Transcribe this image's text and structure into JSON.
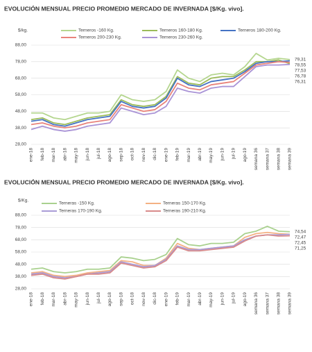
{
  "chart_data": [
    {
      "type": "line",
      "title": "EVOLUCIÓN MENSUAL PRECIO PROMEDIO MERCADO DE INVERNADA [$/Kg. vivo].",
      "y_label": "$/kg.",
      "categories": [
        "ene-18",
        "feb-18",
        "mar-18",
        "abr-18",
        "may-18",
        "jun-18",
        "jul-18",
        "ago-18",
        "sep-18",
        "oct-18",
        "nov-18",
        "dic-18",
        "ene-19",
        "feb-19",
        "mar-19",
        "abr-19",
        "may-19",
        "jun-19",
        "jul-19",
        "ago-19",
        "semana 36",
        "semana 37",
        "semana 38",
        "semana 39"
      ],
      "ylim": [
        28,
        88
      ],
      "yticks": [
        {
          "value": 28,
          "label": "28,00"
        },
        {
          "value": 38,
          "label": "38,00"
        },
        {
          "value": 48,
          "label": "48,00"
        },
        {
          "value": 58,
          "label": "58,00"
        },
        {
          "value": 68,
          "label": "68,00"
        },
        {
          "value": 78,
          "label": "78,00"
        },
        {
          "value": 88,
          "label": "88,00"
        }
      ],
      "grid": true,
      "series": [
        {
          "name": "Terneros -160 Kg.",
          "color": "#b5d68f",
          "values": [
            47,
            47,
            44,
            43,
            45,
            47,
            47,
            48,
            58,
            55,
            54,
            55,
            60,
            73,
            68,
            66,
            70,
            71,
            70,
            75,
            83,
            79,
            80,
            79.31
          ],
          "value_labels": [
            null,
            null,
            null,
            null,
            null,
            null,
            null,
            null,
            null,
            null,
            null,
            null,
            null,
            null,
            null,
            null,
            null,
            null,
            null,
            null,
            null,
            null,
            null,
            "79,31"
          ]
        },
        {
          "name": "Terneros 160-180 Kg.",
          "color": "#9bbb59",
          "values": [
            43,
            44,
            41,
            40,
            42,
            44,
            45,
            46,
            55,
            52,
            51,
            52,
            57,
            69,
            65,
            64,
            68,
            69,
            69,
            73,
            78,
            78,
            79,
            76.78
          ],
          "value_labels": [
            null,
            null,
            null,
            null,
            null,
            null,
            null,
            null,
            null,
            null,
            null,
            null,
            null,
            null,
            null,
            null,
            null,
            null,
            null,
            null,
            null,
            null,
            null,
            "76,78"
          ]
        },
        {
          "name": "Terneros 180-200 Kg.",
          "color": "#4472c4",
          "values": [
            42,
            43,
            40,
            39,
            41,
            43,
            44,
            45,
            54,
            51,
            50,
            51,
            56,
            68,
            64,
            63,
            66,
            67,
            68,
            72,
            77,
            78,
            78,
            78.55
          ],
          "value_labels": [
            null,
            null,
            null,
            null,
            null,
            null,
            null,
            null,
            null,
            null,
            null,
            null,
            null,
            null,
            null,
            null,
            null,
            null,
            null,
            null,
            null,
            null,
            null,
            "78,55"
          ]
        },
        {
          "name": "Terneros 200-230 Kg.",
          "color": "#e8837a",
          "values": [
            40,
            41,
            39,
            38,
            39,
            41,
            42,
            43,
            52,
            50,
            48,
            49,
            54,
            65,
            62,
            61,
            64,
            65,
            66,
            71,
            76,
            77,
            78,
            77.53
          ],
          "value_labels": [
            null,
            null,
            null,
            null,
            null,
            null,
            null,
            null,
            null,
            null,
            null,
            null,
            null,
            null,
            null,
            null,
            null,
            null,
            null,
            null,
            null,
            null,
            null,
            "77,53"
          ]
        },
        {
          "name": "Terneros 230-260 Kg.",
          "color": "#a993d6",
          "values": [
            37,
            39,
            37,
            36,
            37,
            39,
            40,
            41,
            50,
            48,
            46,
            47,
            51,
            62,
            60,
            59,
            62,
            63,
            63,
            69,
            75,
            76,
            76,
            76.31
          ],
          "value_labels": [
            null,
            null,
            null,
            null,
            null,
            null,
            null,
            null,
            null,
            null,
            null,
            null,
            null,
            null,
            null,
            null,
            null,
            null,
            null,
            null,
            null,
            null,
            null,
            "76,31"
          ]
        }
      ]
    },
    {
      "type": "line",
      "title": "EVOLUCIÓN MENSUAL PRECIO PROMEDIO MERCADO DE INVERNADA [$/Kg. vivo].",
      "y_label": "$/Kg.",
      "categories": [
        "ene-18",
        "feb-18",
        "mar-18",
        "abr-18",
        "may-18",
        "jun-18",
        "jul-18",
        "ago-18",
        "sep-18",
        "oct-18",
        "nov-18",
        "dic-18",
        "ene-19",
        "feb-19",
        "mar-19",
        "abr-19",
        "may-19",
        "jun-19",
        "jul-19",
        "ago-19",
        "semana 36",
        "semana 37",
        "semana 38",
        "semana 39"
      ],
      "ylim": [
        28,
        88
      ],
      "yticks": [
        {
          "value": 28,
          "label": "28,00"
        },
        {
          "value": 38,
          "label": "38,00"
        },
        {
          "value": 48,
          "label": "48,00"
        },
        {
          "value": 58,
          "label": "58,00"
        },
        {
          "value": 68,
          "label": "68,00"
        },
        {
          "value": 78,
          "label": "78,00"
        },
        {
          "value": 88,
          "label": "88,00"
        }
      ],
      "grid": true,
      "series": [
        {
          "name": "Terneras -150 Kg.",
          "color": "#a9d18e",
          "values": [
            44,
            45,
            42,
            41,
            42,
            44,
            44,
            45,
            54,
            53,
            51,
            52,
            56,
            69,
            64,
            63,
            65,
            65,
            66,
            73,
            75,
            79,
            75,
            74.54
          ],
          "value_labels": [
            null,
            null,
            null,
            null,
            null,
            null,
            null,
            null,
            null,
            null,
            null,
            null,
            null,
            null,
            null,
            null,
            null,
            null,
            null,
            null,
            null,
            null,
            null,
            "74,54"
          ]
        },
        {
          "name": "Terneras 150-170 Kg.",
          "color": "#f4b183",
          "values": [
            41,
            42,
            39,
            38,
            39,
            41,
            42,
            43,
            51,
            50,
            47,
            47,
            53,
            65,
            61,
            60,
            61,
            62,
            63,
            70,
            73,
            74,
            73,
            72.47
          ],
          "value_labels": [
            null,
            null,
            null,
            null,
            null,
            null,
            null,
            null,
            null,
            null,
            null,
            null,
            null,
            null,
            null,
            null,
            null,
            null,
            null,
            null,
            null,
            null,
            null,
            "72,47"
          ]
        },
        {
          "name": "Terneras 170-190 Kg.",
          "color": "#a99bd6",
          "values": [
            40,
            41,
            38,
            37,
            38,
            40,
            41,
            42,
            50,
            48,
            46,
            47,
            52,
            63,
            60,
            60,
            61,
            62,
            63,
            68,
            71,
            72,
            72,
            72.45
          ],
          "value_labels": [
            null,
            null,
            null,
            null,
            null,
            null,
            null,
            null,
            null,
            null,
            null,
            null,
            null,
            null,
            null,
            null,
            null,
            null,
            null,
            null,
            null,
            null,
            null,
            "72,45"
          ]
        },
        {
          "name": "Terneras 190-210 Kg.",
          "color": "#d88a8a",
          "values": [
            39,
            40,
            37,
            36,
            38,
            40,
            40,
            41,
            49,
            47,
            45,
            46,
            51,
            62,
            59,
            59,
            60,
            61,
            62,
            67,
            71,
            72,
            71,
            71.25
          ],
          "value_labels": [
            null,
            null,
            null,
            null,
            null,
            null,
            null,
            null,
            null,
            null,
            null,
            null,
            null,
            null,
            null,
            null,
            null,
            null,
            null,
            null,
            null,
            null,
            null,
            "71,25"
          ]
        }
      ]
    }
  ]
}
